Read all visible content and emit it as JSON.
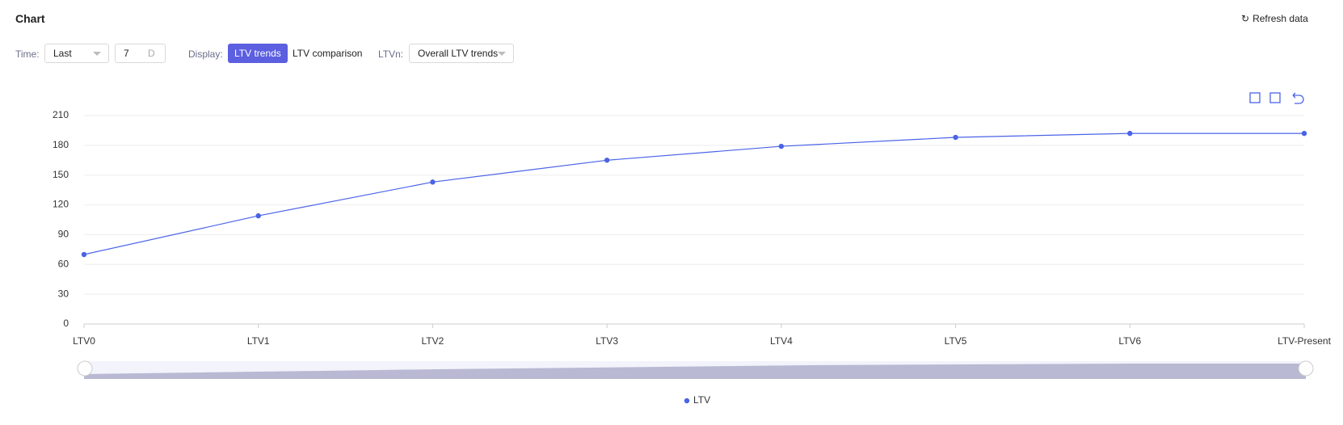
{
  "header": {
    "title": "Chart",
    "refresh": "Refresh data"
  },
  "controls": {
    "time_label": "Time:",
    "time_mode": "Last",
    "time_value": 7,
    "time_unit": "D",
    "display_label": "Display:",
    "display_options": [
      "LTV trends",
      "LTV comparison"
    ],
    "ltvn_label": "LTVn:",
    "ltvn_value": "Overall LTV trends"
  },
  "chart_data": {
    "type": "line",
    "categories": [
      "LTV0",
      "LTV1",
      "LTV2",
      "LTV3",
      "LTV4",
      "LTV5",
      "LTV6",
      "LTV-Present"
    ],
    "series": [
      {
        "name": "LTV",
        "color": "#4a63e8",
        "values": [
          70,
          109,
          143,
          165,
          179,
          188,
          192,
          192
        ]
      }
    ],
    "ylim": [
      0,
      210
    ],
    "yticks": [
      0,
      30,
      60,
      90,
      120,
      150,
      180,
      210
    ],
    "grid": true,
    "legend": "bottom"
  }
}
